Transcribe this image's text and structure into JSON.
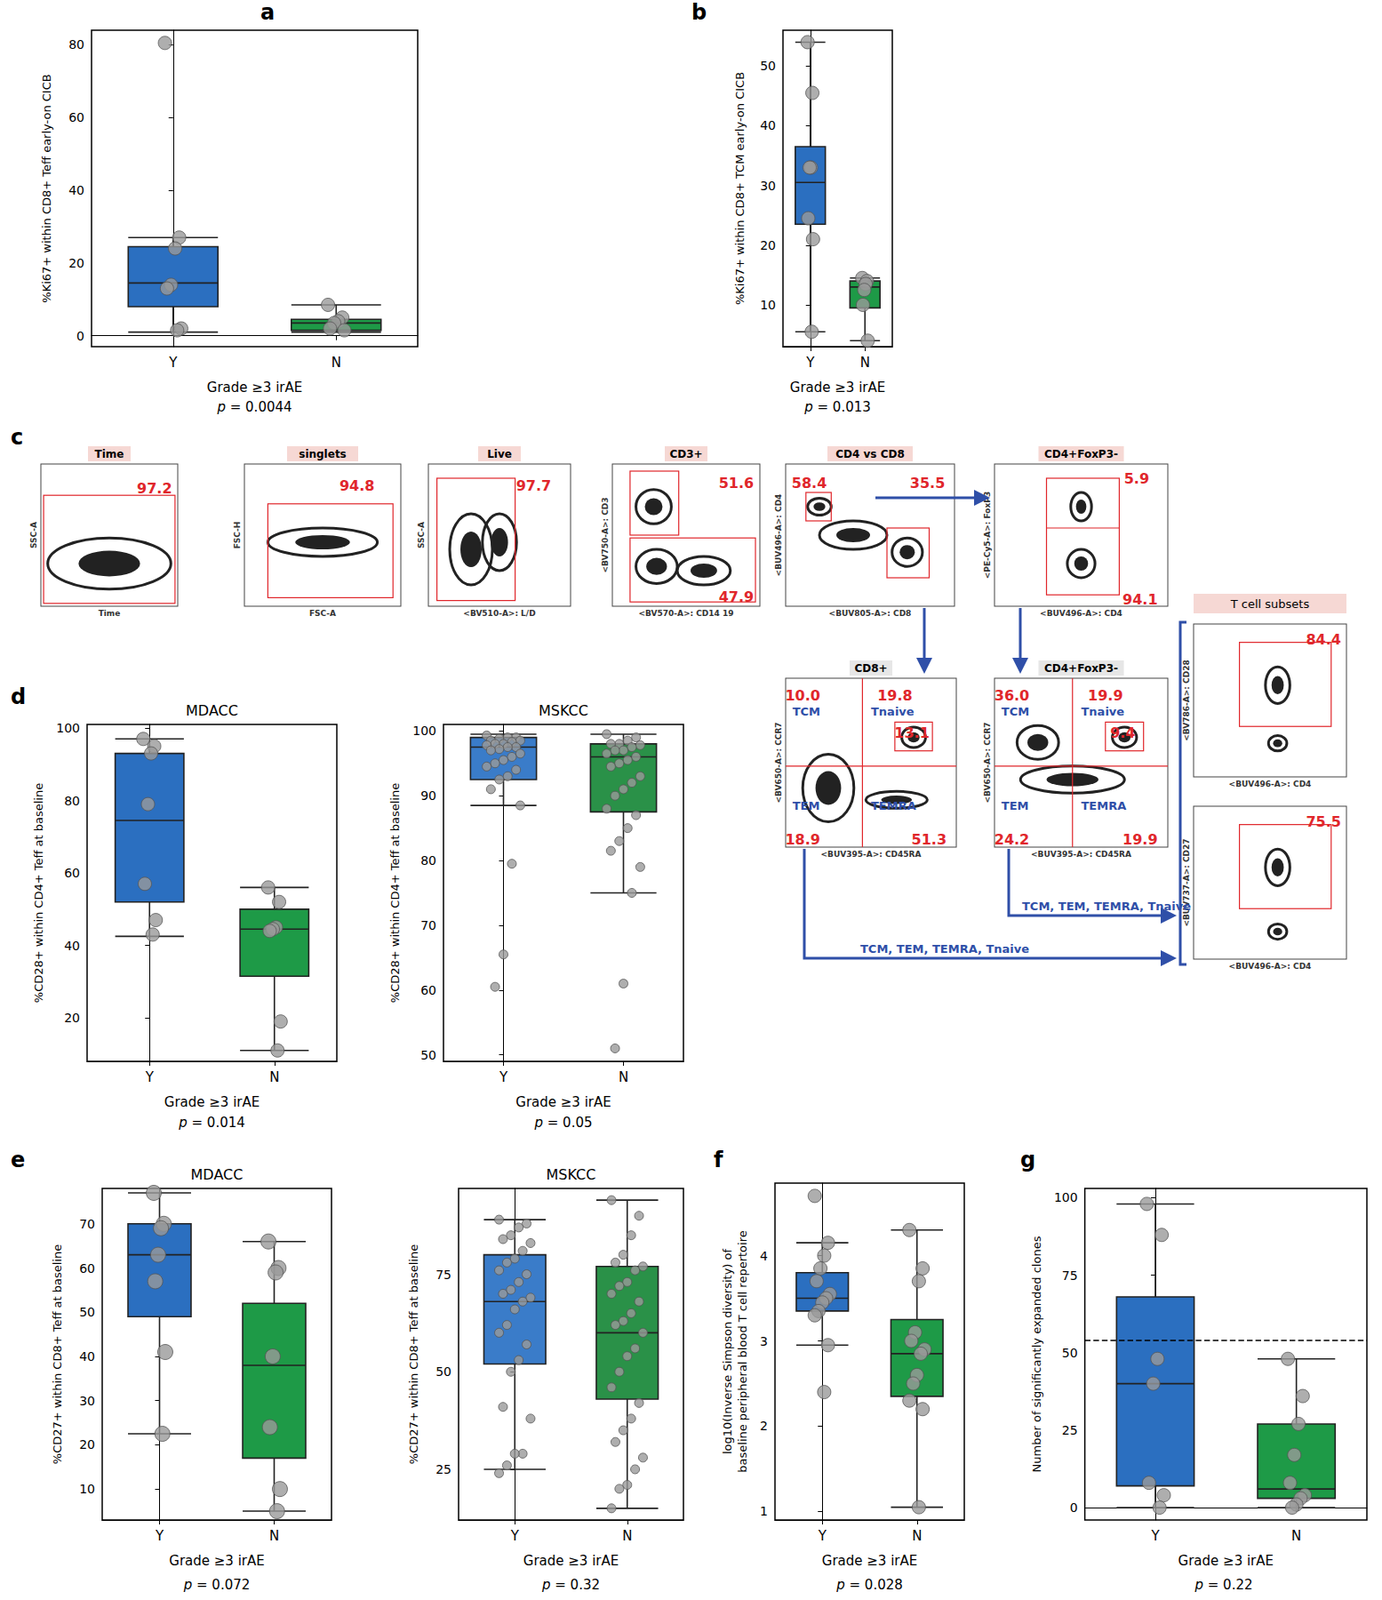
{
  "chart_data": [
    {
      "panel": "a",
      "type": "boxplot",
      "y_label": "%Ki67+ within CD8+ Teff early-on CICB",
      "x_label": "Grade ≥3 irAE",
      "annotation": "p = 0.0044",
      "categories": [
        "Y",
        "N"
      ],
      "colors": [
        "#2b6fc0",
        "#1e9a47"
      ],
      "boxes": [
        [
          1,
          8,
          14.5,
          24.5,
          27
        ],
        [
          1,
          1.5,
          3.5,
          4.5,
          8.5
        ]
      ],
      "points": [
        [
          80.5,
          27,
          24,
          14,
          13,
          2,
          1.5
        ],
        [
          8.5,
          5,
          4,
          3.5,
          2,
          1.5
        ]
      ],
      "ylim": [
        -3,
        84
      ],
      "yticks": [
        0,
        20,
        40,
        60,
        80
      ]
    },
    {
      "panel": "b",
      "type": "boxplot",
      "y_label": "%Ki67+ within CD8+ TCM early-on CICB",
      "x_label": "Grade ≥3 irAE",
      "annotation": "p = 0.013",
      "categories": [
        "Y",
        "N"
      ],
      "colors": [
        "#2b6fc0",
        "#1e9a47"
      ],
      "boxes": [
        [
          5.5,
          23.5,
          30.5,
          36.5,
          54
        ],
        [
          4,
          9.5,
          13,
          14,
          14.5
        ]
      ],
      "points": [
        [
          54,
          45.5,
          33,
          33,
          24.5,
          21,
          5.5
        ],
        [
          14.5,
          14,
          13.5,
          12.5,
          10,
          4
        ]
      ],
      "ylim": [
        3,
        56
      ],
      "yticks": [
        10,
        20,
        30,
        40,
        50
      ]
    },
    {
      "panel": "d",
      "title": "MDACC",
      "type": "boxplot",
      "y_label": "%CD28+ within CD4+ Teff at baseline",
      "x_label": "Grade ≥3 irAE",
      "annotation": "p = 0.014",
      "categories": [
        "Y",
        "N"
      ],
      "colors": [
        "#2b6fc0",
        "#1e9a47"
      ],
      "boxes": [
        [
          42.5,
          52,
          74.5,
          93,
          97
        ],
        [
          11,
          31.5,
          44.5,
          50,
          56
        ]
      ],
      "points": [
        [
          97,
          95,
          93,
          79,
          57,
          47,
          43
        ],
        [
          56,
          52,
          45,
          44.5,
          44,
          19,
          11
        ]
      ],
      "ylim": [
        8,
        101
      ],
      "yticks": [
        20,
        40,
        60,
        80,
        100
      ]
    },
    {
      "title": "MSKCC",
      "type": "boxplot",
      "y_label": "%CD28+ within CD4+ Teff at baseline",
      "x_label": "Grade ≥3 irAE",
      "annotation": "p = 0.05",
      "categories": [
        "Y",
        "N"
      ],
      "colors": [
        "#3a7cc9",
        "#2a9148"
      ],
      "boxes": [
        [
          88.5,
          92.5,
          97.5,
          99,
          99.5
        ],
        [
          75,
          87.5,
          96,
          98,
          99.5
        ]
      ],
      "points": [
        [
          99.3,
          99,
          99,
          98.8,
          98.5,
          98.5,
          98.3,
          98,
          98,
          97.8,
          97.5,
          97.5,
          97.2,
          97,
          96.5,
          96,
          95.5,
          95,
          94.5,
          94,
          93,
          92.5,
          91,
          88.5,
          79.5,
          65.5,
          60.5
        ],
        [
          99.5,
          99,
          98.5,
          98,
          98,
          97.8,
          97.5,
          97,
          97,
          96.5,
          96,
          95.5,
          95,
          94.5,
          93,
          92,
          91,
          90,
          88,
          87,
          85,
          83,
          81.5,
          79,
          75,
          61,
          51
        ]
      ],
      "ylim": [
        49,
        101
      ],
      "yticks": [
        50,
        60,
        70,
        80,
        90,
        100
      ]
    },
    {
      "panel": "e",
      "title": "MDACC",
      "type": "boxplot",
      "y_label": "%CD27+ within CD8+ Teff at baseline",
      "x_label": "Grade ≥3 irAE",
      "annotation": "p = 0.072",
      "categories": [
        "Y",
        "N"
      ],
      "colors": [
        "#2b6fc0",
        "#1e9a47"
      ],
      "boxes": [
        [
          22.5,
          49,
          63,
          70,
          77
        ],
        [
          5,
          17,
          38,
          52,
          66
        ]
      ],
      "points": [
        [
          77,
          70,
          69,
          63,
          57,
          41,
          22.5
        ],
        [
          66,
          60,
          59,
          40,
          24,
          10,
          5
        ]
      ],
      "ylim": [
        3,
        78
      ],
      "yticks": [
        10,
        20,
        30,
        40,
        50,
        60,
        70
      ]
    },
    {
      "title": "MSKCC",
      "type": "boxplot",
      "y_label": "%CD27+ within CD8+ Teff at baseline",
      "x_label": "Grade ≥3 irAE",
      "annotation": "p = 0.32",
      "categories": [
        "Y",
        "N"
      ],
      "colors": [
        "#3a7cc9",
        "#2a9148"
      ],
      "boxes": [
        [
          25,
          52,
          68,
          80,
          89
        ],
        [
          15,
          43,
          60,
          77,
          94
        ]
      ],
      "points": [
        [
          89,
          88,
          87,
          85,
          84,
          83,
          81,
          79,
          78,
          76,
          75,
          73,
          71,
          70,
          69,
          68,
          66,
          62,
          60,
          57,
          53,
          50,
          41,
          38,
          29,
          29,
          26,
          24
        ],
        [
          94,
          90,
          85,
          80,
          78,
          77,
          76,
          73,
          72,
          70,
          68,
          65,
          63,
          62,
          60,
          56,
          54,
          50,
          46,
          42,
          38,
          35,
          32,
          28,
          25,
          21,
          20,
          15
        ]
      ],
      "ylim": [
        12,
        97
      ],
      "yticks": [
        25,
        50,
        75
      ]
    },
    {
      "panel": "f",
      "type": "boxplot",
      "y_label": "log10(Inverse Simpson diversity) of\nbaseline peripheral blood T cell repertoire",
      "x_label": "Grade ≥3 irAE",
      "annotation": "p = 0.028",
      "categories": [
        "Y",
        "N"
      ],
      "colors": [
        "#2b6fc0",
        "#1e9a47"
      ],
      "boxes": [
        [
          2.95,
          3.35,
          3.5,
          3.8,
          4.15
        ],
        [
          1.05,
          2.35,
          2.85,
          3.25,
          4.3
        ]
      ],
      "points": [
        [
          4.7,
          4.15,
          4.0,
          3.85,
          3.7,
          3.55,
          3.5,
          3.45,
          3.35,
          3.3,
          2.95,
          2.4
        ],
        [
          4.3,
          3.85,
          3.7,
          3.1,
          3.0,
          2.9,
          2.85,
          2.6,
          2.5,
          2.3,
          2.2,
          1.05
        ]
      ],
      "ylim": [
        0.9,
        4.85
      ],
      "yticks": [
        1,
        2,
        3,
        4
      ]
    },
    {
      "panel": "g",
      "type": "boxplot",
      "y_label": "Number of significantly expanded clones",
      "x_label": "Grade ≥3 irAE",
      "annotation": "p = 0.22",
      "categories": [
        "Y",
        "N"
      ],
      "colors": [
        "#2b6fc0",
        "#1e9a47"
      ],
      "boxes": [
        [
          0,
          7,
          40,
          68,
          98
        ],
        [
          0,
          3,
          6,
          27,
          48
        ]
      ],
      "points": [
        [
          98,
          88,
          48,
          40,
          8,
          4,
          0
        ],
        [
          48,
          36,
          27,
          17,
          8,
          4,
          3,
          1,
          0
        ]
      ],
      "hline": 54,
      "ylim": [
        -4,
        103
      ],
      "yticks": [
        0,
        25,
        50,
        75,
        100
      ]
    }
  ],
  "gating": {
    "panel": "c",
    "header": "T cell subsets",
    "plots": [
      {
        "title": "Time",
        "x_label": "Time",
        "y_label": "SSC-A",
        "numbers": [
          "97.2"
        ]
      },
      {
        "title": "singlets",
        "x_label": "FSC-A",
        "y_label": "FSC-H",
        "numbers": [
          "94.8"
        ]
      },
      {
        "title": "Live",
        "x_label": "<BV510-A>: L/D",
        "y_label": "SSC-A",
        "numbers": [
          "97.7"
        ]
      },
      {
        "title": "CD3+",
        "x_label": "<BV570-A>: CD14 19",
        "y_label": "<BV750-A>: CD3",
        "numbers": [
          "51.6",
          "47.9"
        ]
      },
      {
        "title": "CD4 vs CD8",
        "x_label": "<BUV805-A>: CD8",
        "y_label": "<BUV496-A>: CD4",
        "numbers": [
          "58.4",
          "35.5"
        ]
      },
      {
        "title": "CD4+FoxP3-",
        "x_label": "<BUV496-A>: CD4",
        "y_label": "<PE-Cy5-A>: FoxP3",
        "numbers": [
          "5.9",
          "94.1"
        ]
      },
      {
        "title": "CD8+",
        "x_label": "<BUV395-A>: CD45RA",
        "y_label": "<BV650-A>: CCR7",
        "numbers": [
          "10.0",
          "19.8",
          "13.1",
          "18.9",
          "51.3"
        ],
        "quadrants": [
          "TCM",
          "Tnaive",
          "TEM",
          "TEMRA"
        ]
      },
      {
        "title": "CD4+FoxP3-",
        "x_label": "<BUV395-A>: CD45RA",
        "y_label": "<BV650-A>: CCR7",
        "numbers": [
          "36.0",
          "19.9",
          "9.4",
          "24.2",
          "19.9"
        ],
        "quadrants": [
          "TCM",
          "Tnaive",
          "TEM",
          "TEMRA"
        ]
      },
      {
        "x_label": "<BUV496-A>: CD4",
        "y_label": "<BV786-A>: CD28",
        "numbers": [
          "84.4"
        ]
      },
      {
        "x_label": "<BUV496-A>: CD4",
        "y_label": "<BUV737-A>: CD27",
        "numbers": [
          "75.5"
        ]
      }
    ],
    "arrow_labels": [
      "TCM, TEM, TEMRA, Tnaive",
      "TCM, TEM, TEMRA, Tnaive"
    ]
  }
}
